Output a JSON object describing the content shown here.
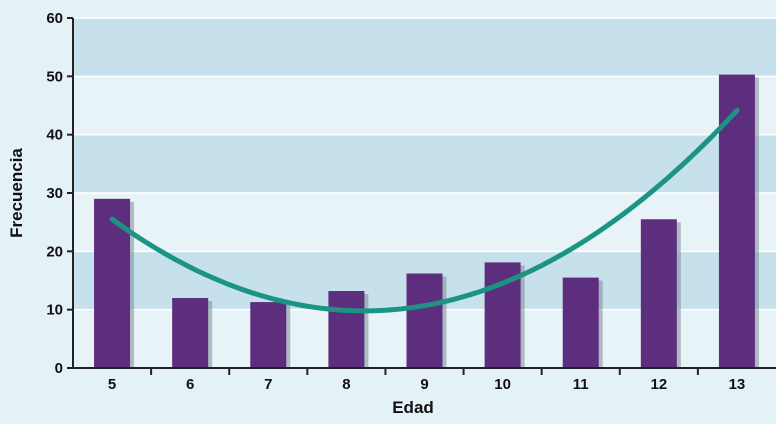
{
  "chart_data": {
    "type": "bar",
    "title": "",
    "xlabel": "Edad",
    "ylabel": "Frecuencia",
    "categories": [
      "5",
      "6",
      "7",
      "8",
      "9",
      "10",
      "11",
      "12",
      "13"
    ],
    "series": [
      {
        "values": [
          29,
          12,
          11.3,
          13.2,
          16.2,
          18.1,
          15.5,
          25.5,
          50.3
        ]
      }
    ],
    "trendline": {
      "type": "quadratic",
      "points": [
        [
          5,
          26
        ],
        [
          6,
          17
        ],
        [
          7,
          11.5
        ],
        [
          8,
          9.7
        ],
        [
          9,
          10.5
        ],
        [
          10,
          15.5
        ],
        [
          11,
          21.5
        ],
        [
          12,
          31
        ],
        [
          13,
          44
        ]
      ]
    },
    "yticks": [
      0,
      10,
      20,
      30,
      40,
      50,
      60
    ],
    "ylim": [
      0,
      60
    ],
    "grid": true,
    "colors": {
      "bar": "#5e2e7e",
      "bar_shadow": "#7e8c94",
      "trend": "#1c9484",
      "plot_band_light": "#e8f3f8",
      "plot_band_dark": "#c6e1ec",
      "axis": "#222222"
    }
  }
}
